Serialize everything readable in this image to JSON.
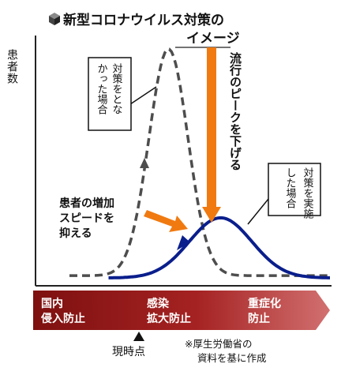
{
  "header": {
    "title_line1": "新型コロナウイルス対策の",
    "title_line2": "イメージ",
    "icon": "cube-icon"
  },
  "chart_data": {
    "type": "line",
    "title": "新型コロナウイルス対策のイメージ",
    "ylabel": "患者数",
    "xlabel": "",
    "grid": false,
    "series": [
      {
        "name": "対策をとらなかった場合",
        "style": "dashed",
        "color": "#4d4d4d",
        "curve": {
          "peak_time": 0.38,
          "peak_level": 1.0,
          "spread": 0.075,
          "baseline": 0.02
        }
      },
      {
        "name": "対策を実施した場合",
        "style": "solid",
        "color": "#0a1e8c",
        "curve": {
          "peak_time": 0.58,
          "peak_level": 0.27,
          "spread": 0.12,
          "baseline": 0.01
        }
      }
    ],
    "annotations": {
      "no_measure_lines": [
        "対策をとな",
        "かった場合"
      ],
      "measure_lines": [
        "対策を実施",
        "した場合"
      ],
      "peak_lower": "流行のピークを下げる",
      "slow_speed_lines": [
        "患者の増加",
        "スピードを",
        "抑える"
      ]
    }
  },
  "phases": {
    "color": "#a32020",
    "items": [
      {
        "line1": "国内",
        "line2": "侵入防止"
      },
      {
        "line1": "感染",
        "line2": "拡大防止"
      },
      {
        "line1": "重症化",
        "line2": "防止"
      }
    ]
  },
  "current_point": {
    "label": "現時点",
    "icon": "triangle-up-icon"
  },
  "note": {
    "line1": "※厚生労働省の",
    "line2": "資料を基に作成"
  },
  "colors": {
    "arrow_orange": "#f07a10",
    "curve_blue": "#0a1e8c",
    "curve_dashed": "#4d4d4d"
  }
}
